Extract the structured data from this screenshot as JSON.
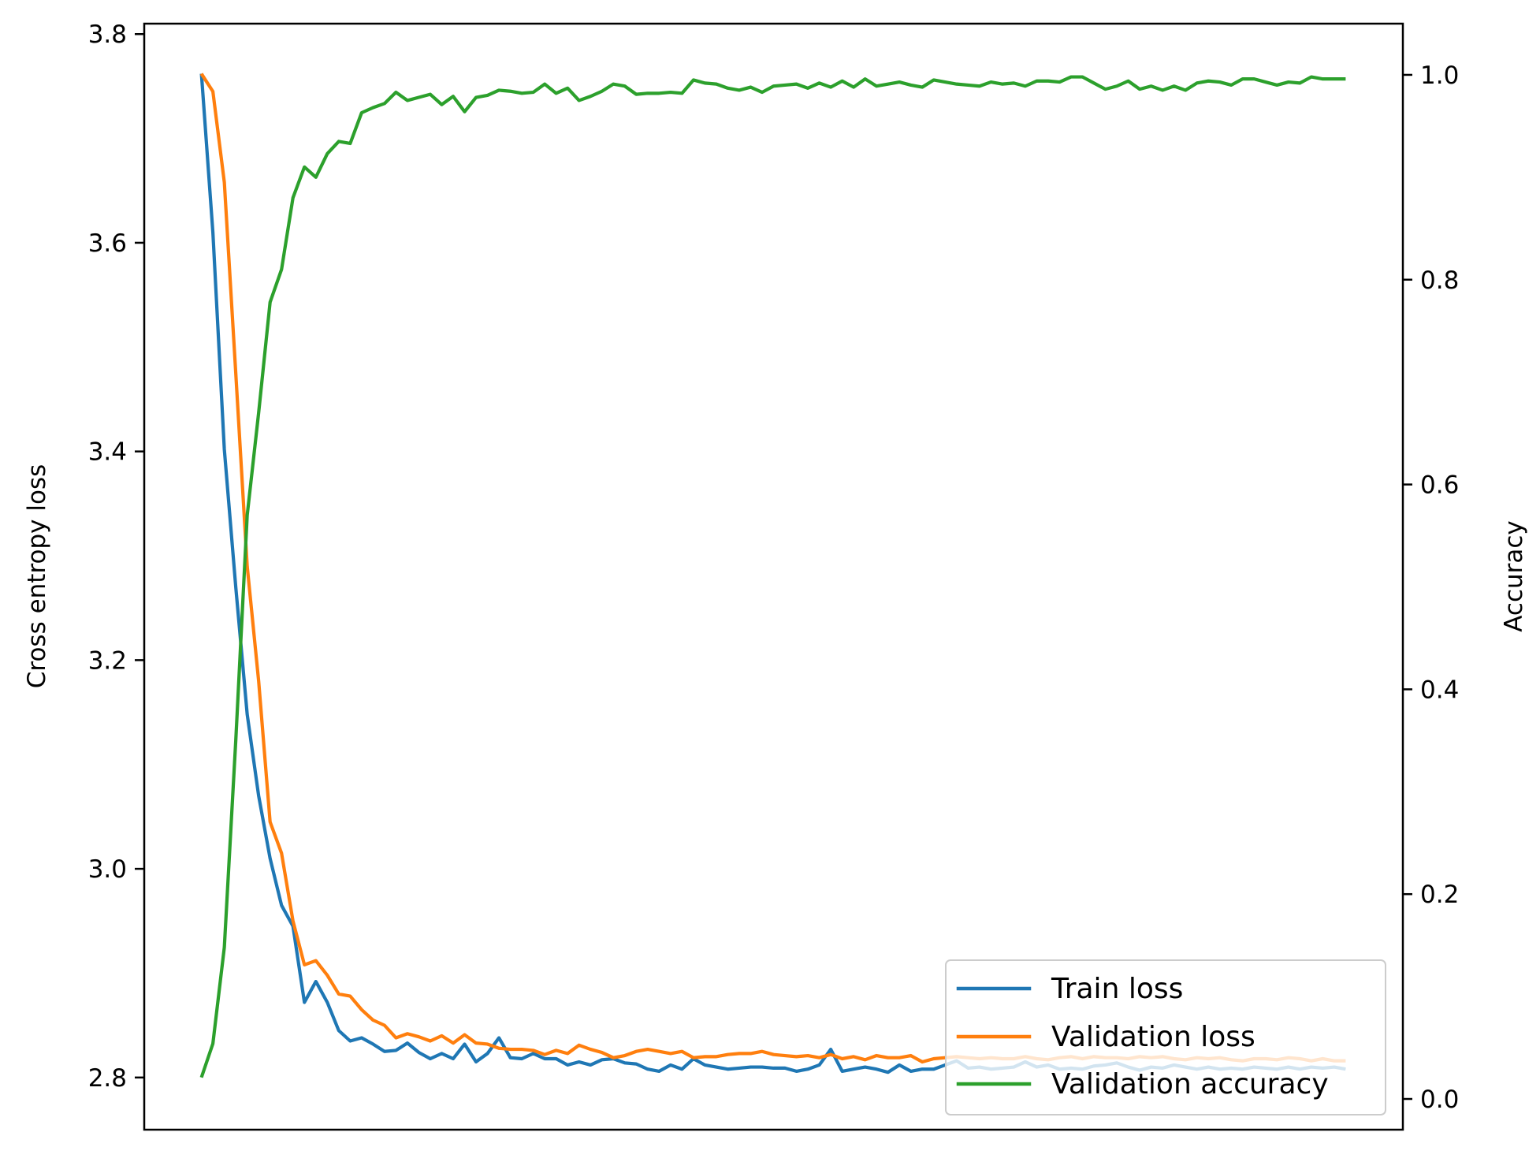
{
  "chart_data": {
    "type": "line",
    "title": "",
    "xlabel": "",
    "ylabel_left": "Cross entropy loss",
    "ylabel_right": "Accuracy",
    "xlim": [
      -5,
      105
    ],
    "ylim_left": [
      2.75,
      3.81
    ],
    "ylim_right": [
      -0.03,
      1.05
    ],
    "yticks_left": [
      2.8,
      3.0,
      3.2,
      3.4,
      3.6,
      3.8
    ],
    "yticks_left_labels": [
      "2.8",
      "3.0",
      "3.2",
      "3.4",
      "3.6",
      "3.8"
    ],
    "yticks_right": [
      0.0,
      0.2,
      0.4,
      0.6,
      0.8,
      1.0
    ],
    "yticks_right_labels": [
      "0.0",
      "0.2",
      "0.4",
      "0.6",
      "0.8",
      "1.0"
    ],
    "grid": false,
    "legend_position": "lower-right",
    "series": [
      {
        "name": "Train loss",
        "axis": "left",
        "color": "#1f77b4",
        "values": [
          3.762,
          3.61,
          3.402,
          3.27,
          3.148,
          3.07,
          3.01,
          2.965,
          2.945,
          2.872,
          2.892,
          2.872,
          2.845,
          2.835,
          2.838,
          2.832,
          2.825,
          2.826,
          2.833,
          2.824,
          2.818,
          2.823,
          2.818,
          2.832,
          2.815,
          2.823,
          2.838,
          2.819,
          2.818,
          2.823,
          2.818,
          2.818,
          2.812,
          2.815,
          2.812,
          2.817,
          2.818,
          2.814,
          2.813,
          2.808,
          2.806,
          2.812,
          2.808,
          2.818,
          2.812,
          2.81,
          2.808,
          2.809,
          2.81,
          2.81,
          2.809,
          2.809,
          2.806,
          2.808,
          2.812,
          2.827,
          2.806,
          2.808,
          2.81,
          2.808,
          2.805,
          2.812,
          2.806,
          2.808,
          2.808,
          2.812,
          2.816,
          2.809,
          2.81,
          2.808,
          2.809,
          2.81,
          2.815,
          2.81,
          2.812,
          2.808,
          2.809,
          2.808,
          2.811,
          2.812,
          2.814,
          2.81,
          2.807,
          2.81,
          2.809,
          2.812,
          2.81,
          2.808,
          2.81,
          2.808,
          2.809,
          2.808,
          2.81,
          2.809,
          2.808,
          2.81,
          2.808,
          2.81,
          2.809,
          2.81,
          2.808
        ]
      },
      {
        "name": "Validation loss",
        "axis": "left",
        "color": "#ff7f0e",
        "values": [
          3.762,
          3.745,
          3.658,
          3.475,
          3.29,
          3.18,
          3.045,
          3.015,
          2.95,
          2.908,
          2.912,
          2.898,
          2.88,
          2.878,
          2.865,
          2.855,
          2.85,
          2.838,
          2.842,
          2.839,
          2.835,
          2.84,
          2.833,
          2.841,
          2.833,
          2.832,
          2.828,
          2.827,
          2.827,
          2.826,
          2.822,
          2.826,
          2.823,
          2.831,
          2.827,
          2.824,
          2.819,
          2.821,
          2.825,
          2.827,
          2.825,
          2.823,
          2.825,
          2.819,
          2.82,
          2.82,
          2.822,
          2.823,
          2.823,
          2.825,
          2.822,
          2.821,
          2.82,
          2.821,
          2.819,
          2.822,
          2.818,
          2.82,
          2.817,
          2.821,
          2.819,
          2.819,
          2.821,
          2.815,
          2.818,
          2.819,
          2.82,
          2.819,
          2.818,
          2.819,
          2.818,
          2.818,
          2.82,
          2.818,
          2.817,
          2.819,
          2.82,
          2.818,
          2.82,
          2.819,
          2.819,
          2.818,
          2.82,
          2.819,
          2.82,
          2.818,
          2.817,
          2.819,
          2.818,
          2.819,
          2.817,
          2.816,
          2.818,
          2.818,
          2.817,
          2.819,
          2.818,
          2.816,
          2.818,
          2.816,
          2.816
        ]
      },
      {
        "name": "Validation accuracy",
        "axis": "right",
        "color": "#2ca02c",
        "values": [
          0.021,
          0.054,
          0.148,
          0.35,
          0.57,
          0.67,
          0.778,
          0.81,
          0.88,
          0.91,
          0.9,
          0.923,
          0.935,
          0.933,
          0.963,
          0.968,
          0.972,
          0.983,
          0.975,
          0.978,
          0.981,
          0.971,
          0.979,
          0.964,
          0.978,
          0.98,
          0.985,
          0.984,
          0.982,
          0.983,
          0.991,
          0.982,
          0.987,
          0.975,
          0.979,
          0.984,
          0.991,
          0.989,
          0.981,
          0.982,
          0.982,
          0.983,
          0.982,
          0.995,
          0.992,
          0.991,
          0.987,
          0.985,
          0.988,
          0.983,
          0.989,
          0.99,
          0.991,
          0.987,
          0.992,
          0.988,
          0.994,
          0.988,
          0.996,
          0.989,
          0.991,
          0.993,
          0.99,
          0.988,
          0.995,
          0.993,
          0.991,
          0.99,
          0.989,
          0.993,
          0.991,
          0.992,
          0.989,
          0.994,
          0.994,
          0.993,
          0.998,
          0.998,
          0.992,
          0.986,
          0.989,
          0.994,
          0.986,
          0.989,
          0.985,
          0.989,
          0.985,
          0.992,
          0.994,
          0.993,
          0.99,
          0.996,
          0.996,
          0.993,
          0.99,
          0.993,
          0.992,
          0.998,
          0.996,
          0.996,
          0.996
        ]
      }
    ]
  }
}
